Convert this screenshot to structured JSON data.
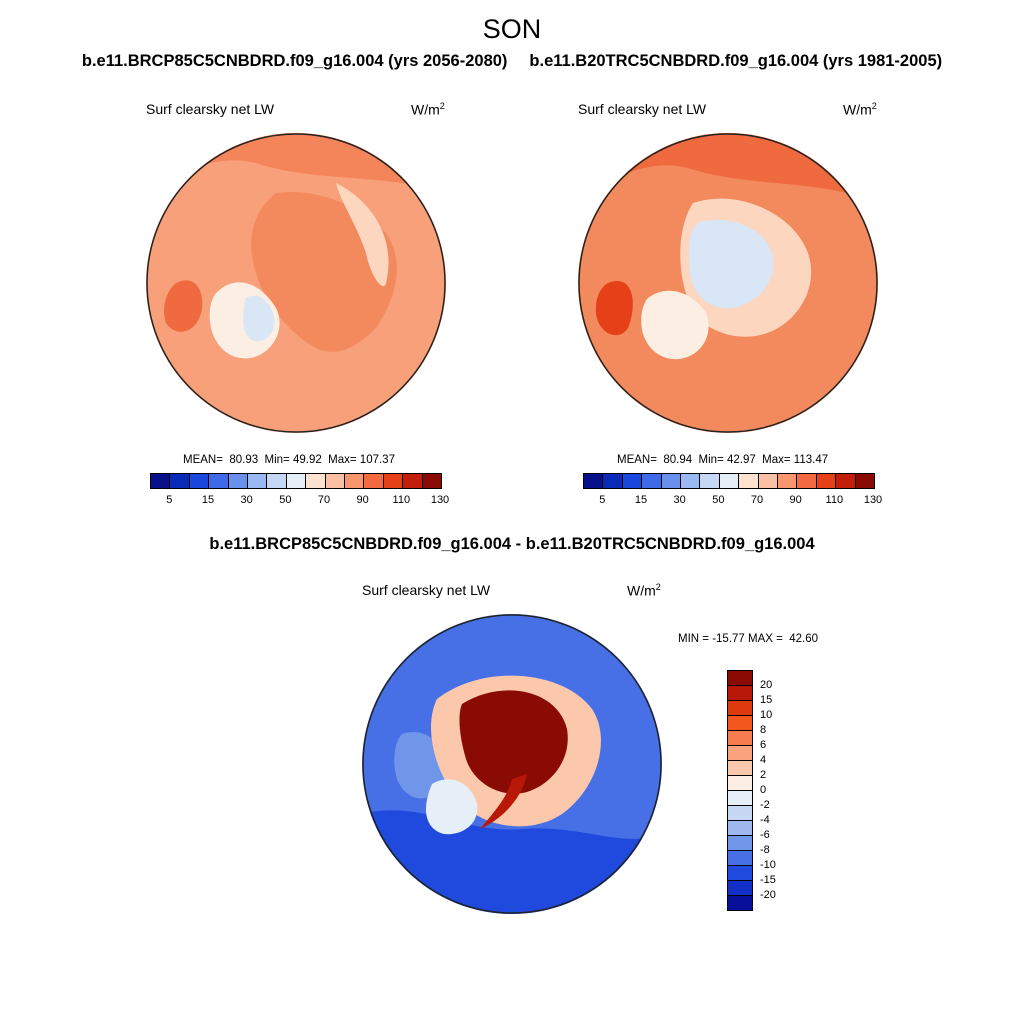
{
  "season": "SON",
  "run_a_title": "b.e11.BRCP85C5CNBDRD.f09_g16.004 (yrs 2056-2080)",
  "run_b_title": "b.e11.B20TRC5CNBDRD.f09_g16.004 (yrs 1981-2005)",
  "diff_title": "b.e11.BRCP85C5CNBDRD.f09_g16.004 - b.e11.B20TRC5CNBDRD.f09_g16.004",
  "variable": "Surf clearsky net LW",
  "units_base": "W/m",
  "units_exp": "2",
  "panel_a": {
    "stats": {
      "mean_label": "MEAN=",
      "mean": "80.93",
      "min_label": "Min=",
      "min": "49.92",
      "max_label": "Max=",
      "max": "107.37"
    }
  },
  "panel_b": {
    "stats": {
      "mean_label": "MEAN=",
      "mean": "80.94",
      "min_label": "Min=",
      "min": "42.97",
      "max_label": "Max=",
      "max": "113.47"
    }
  },
  "panel_diff": {
    "stats": {
      "min_label": "MIN =",
      "min": "-15.77",
      "max_label": "MAX =",
      "max": "42.60"
    }
  },
  "field_colorbar": {
    "tick_labels": [
      "5",
      "15",
      "30",
      "50",
      "70",
      "90",
      "110",
      "130"
    ],
    "colors": [
      "#08108a",
      "#0a2ab8",
      "#1a48dc",
      "#3e6ae8",
      "#6a90ee",
      "#9ab8f2",
      "#c4d8f6",
      "#e6eef8",
      "#fde2d0",
      "#fcc0a4",
      "#f9966e",
      "#f36a40",
      "#e64018",
      "#c21e0a",
      "#8a0a04"
    ]
  },
  "diff_colorbar": {
    "tick_labels": [
      "20",
      "15",
      "10",
      "8",
      "6",
      "4",
      "2",
      "0",
      "-2",
      "-4",
      "-6",
      "-8",
      "-10",
      "-15",
      "-20"
    ],
    "colors": [
      "#8a0a04",
      "#b81808",
      "#de3a10",
      "#f2581c",
      "#f67e4e",
      "#f9a27e",
      "#fcc8ac",
      "#fdeee4",
      "#e6eef8",
      "#c6d8f4",
      "#9eb8ee",
      "#7096ea",
      "#4870e6",
      "#204ade",
      "#1030c8",
      "#08109a"
    ]
  }
}
